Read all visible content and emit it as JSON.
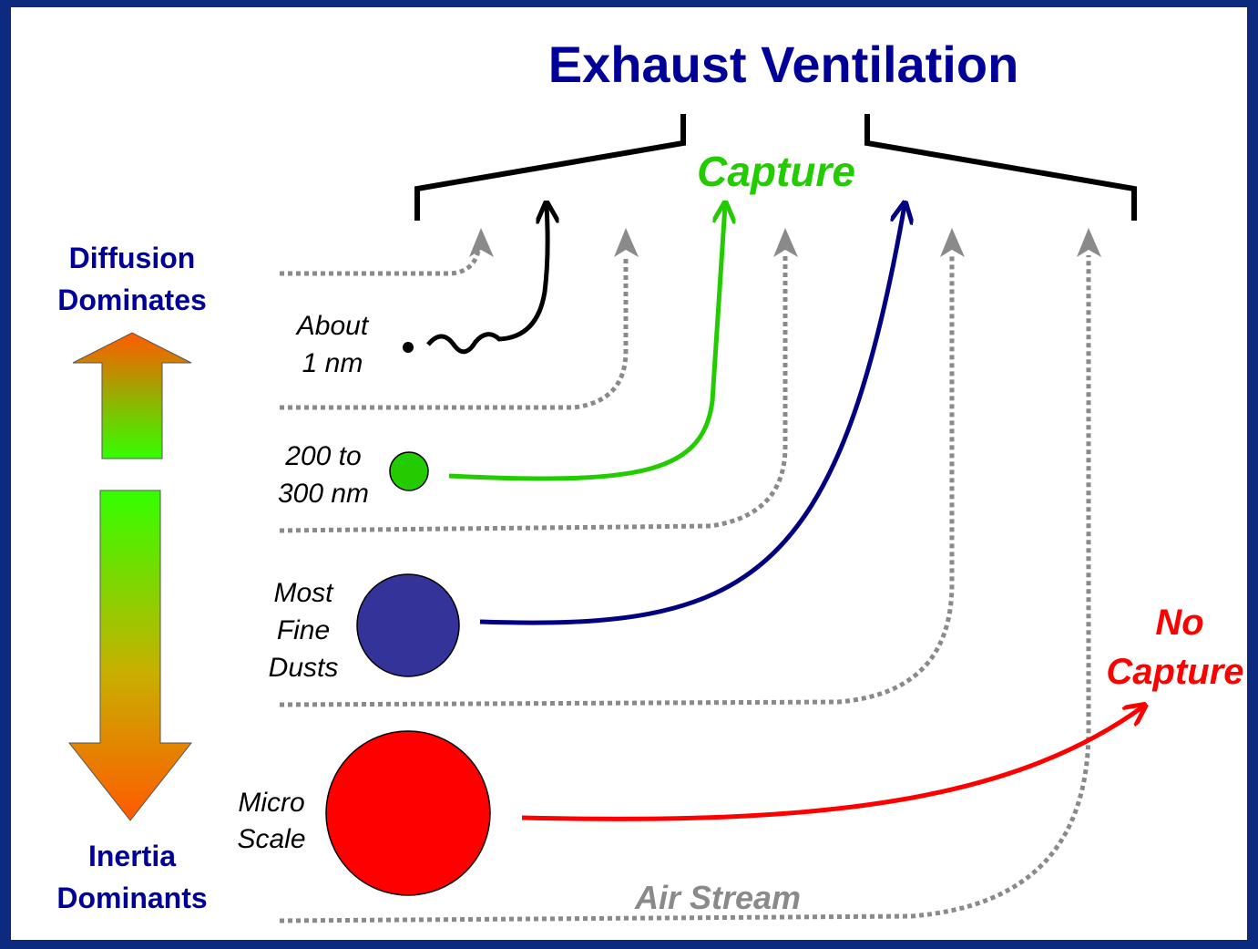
{
  "title": "Exhaust Ventilation",
  "capture_label": "Capture",
  "no_capture_label": [
    "No",
    "Capture"
  ],
  "top_label": [
    "Diffusion",
    "Dominates"
  ],
  "bottom_label": [
    "Inertia",
    "Dominants"
  ],
  "air_stream_label": "Air Stream",
  "particles": [
    {
      "label": [
        "About",
        "1 nm"
      ]
    },
    {
      "label": [
        "200 to",
        "300 nm"
      ]
    },
    {
      "label": [
        "Most",
        "Fine",
        "Dusts"
      ]
    },
    {
      "label": [
        "Micro",
        "Scale"
      ]
    }
  ]
}
